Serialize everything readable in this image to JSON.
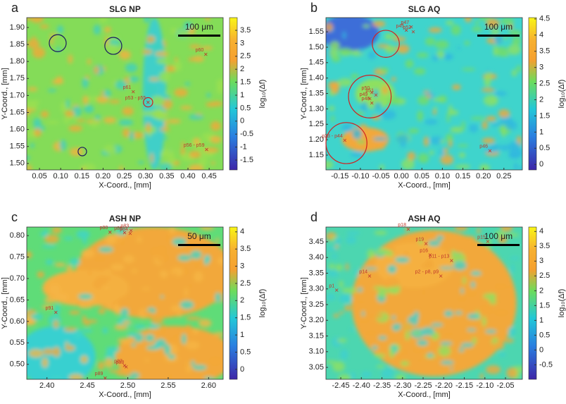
{
  "chart_data": [
    {
      "type": "heatmap",
      "panel": "a",
      "title": "SLG NP",
      "xlabel": "X-Coord., [mm]",
      "ylabel": "Y-Coord., [mm]",
      "colorbar_label": "log₁₀(Δf)",
      "scalebar": "100 μm",
      "xlim": [
        0.02,
        0.483
      ],
      "ylim": [
        1.481,
        1.929
      ],
      "clim": [
        -1.88,
        3.99
      ],
      "xticks": [
        0.05,
        {
          "value": 0.1,
          "label": "0.10"
        },
        0.15,
        {
          "value": 0.2,
          "label": "0.20"
        },
        0.25,
        {
          "value": 0.3,
          "label": "0.30"
        },
        0.35,
        {
          "value": 0.4,
          "label": "0.40"
        },
        0.45
      ],
      "yticks": [
        {
          "value": 1.5,
          "label": "1.50"
        },
        1.55,
        {
          "value": 1.6,
          "label": "1.60"
        },
        1.65,
        {
          "value": 1.7,
          "label": "1.70"
        },
        1.75,
        {
          "value": 1.8,
          "label": "1.80"
        },
        1.85,
        {
          "value": 1.9,
          "label": "1.90"
        }
      ],
      "cticks": [
        -1.5,
        -1,
        -0.5,
        0,
        0.5,
        1,
        1.5,
        2,
        2.5,
        3,
        3.5
      ],
      "annotations": [
        {
          "label": "p60",
          "x": 0.442,
          "y": 1.821
        },
        {
          "label": "p61",
          "x": 0.271,
          "y": 1.711
        },
        {
          "label": "p53 - p55",
          "x": 0.306,
          "y": 1.68
        },
        {
          "label": "p56 - p59",
          "x": 0.444,
          "y": 1.541
        }
      ],
      "circles": [
        {
          "x": 0.306,
          "y": 1.68,
          "r": 0.011,
          "color": "#d02020"
        },
        {
          "x": 0.093,
          "y": 1.854,
          "r": 0.02,
          "color": "#1a1a60"
        },
        {
          "x": 0.224,
          "y": 1.846,
          "r": 0.02,
          "color": "#1a1a60"
        },
        {
          "x": 0.151,
          "y": 1.535,
          "r": 0.01,
          "color": "#1a1a60"
        }
      ]
    },
    {
      "type": "heatmap",
      "panel": "b",
      "title": "SLG AQ",
      "xlabel": "X-Coord., [mm]",
      "ylabel": "Y-Coord., [mm]",
      "colorbar_label": "log₁₀(Δf)",
      "scalebar": "100 μm",
      "xlim": [
        -0.184,
        0.295
      ],
      "ylim": [
        1.102,
        1.596
      ],
      "clim": [
        -0.17,
        4.54
      ],
      "xticks": [
        -0.15,
        {
          "value": -0.1,
          "label": "-0.10"
        },
        -0.05,
        {
          "value": 0,
          "label": "0.00"
        },
        0.05,
        {
          "value": 0.1,
          "label": "0.10"
        },
        0.15,
        {
          "value": 0.2,
          "label": "0.20"
        },
        0.25
      ],
      "yticks": [
        1.15,
        {
          "value": 1.2,
          "label": "1.20"
        },
        1.25,
        {
          "value": 1.3,
          "label": "1.30"
        },
        1.35,
        {
          "value": 1.4,
          "label": "1.40"
        },
        1.45,
        {
          "value": 1.5,
          "label": "1.50"
        },
        1.55
      ],
      "cticks": [
        0,
        0.5,
        1,
        1.5,
        2,
        2.5,
        3,
        3.5,
        4,
        4.5
      ],
      "annotations": [
        {
          "label": "p47",
          "x": 0.024,
          "y": 1.566
        },
        {
          "label": "p45",
          "x": 0.012,
          "y": 1.555
        },
        {
          "label": "p52",
          "x": 0.029,
          "y": 1.55
        },
        {
          "label": "p50",
          "x": -0.072,
          "y": 1.353
        },
        {
          "label": "p51",
          "x": -0.062,
          "y": 1.345
        },
        {
          "label": "p49",
          "x": -0.077,
          "y": 1.333
        },
        {
          "label": "p48",
          "x": -0.072,
          "y": 1.319
        },
        {
          "label": "p23 - p44",
          "x": -0.138,
          "y": 1.198
        },
        {
          "label": "p46",
          "x": 0.216,
          "y": 1.164
        }
      ],
      "circles": [
        {
          "x": -0.038,
          "y": 1.511,
          "r": 0.033,
          "color": "#d02020"
        },
        {
          "x": -0.077,
          "y": 1.34,
          "r": 0.052,
          "color": "#d02020"
        },
        {
          "x": -0.134,
          "y": 1.189,
          "r": 0.05,
          "color": "#d02020"
        }
      ]
    },
    {
      "type": "heatmap",
      "panel": "c",
      "title": "ASH NP",
      "xlabel": "X-Coord., [mm]",
      "ylabel": "Y-Coord., [mm]",
      "colorbar_label": "log₁₀(Δf)",
      "scalebar": "50 μm",
      "xlim": [
        2.375,
        2.618
      ],
      "ylim": [
        0.465,
        0.82
      ],
      "clim": [
        -0.29,
        4.14
      ],
      "xticks": [
        {
          "value": 2.4,
          "label": "2.40"
        },
        2.45,
        {
          "value": 2.5,
          "label": "2.50"
        },
        2.55,
        {
          "value": 2.6,
          "label": "2.60"
        }
      ],
      "yticks": [
        {
          "value": 0.5,
          "label": "0.50"
        },
        0.55,
        {
          "value": 0.6,
          "label": "0.60"
        },
        0.65,
        {
          "value": 0.7,
          "label": "0.70"
        },
        0.75,
        {
          "value": 0.8,
          "label": "0.80"
        }
      ],
      "cticks": [
        0,
        0.5,
        1,
        1.5,
        2,
        2.5,
        3,
        3.5,
        4
      ],
      "annotations": [
        {
          "label": "p80",
          "x": 2.478,
          "y": 0.808
        },
        {
          "label": "p86",
          "x": 2.496,
          "y": 0.807
        },
        {
          "label": "p83",
          "x": 2.504,
          "y": 0.812
        },
        {
          "label": "p84",
          "x": 2.503,
          "y": 0.805
        },
        {
          "label": "p91",
          "x": 2.411,
          "y": 0.621
        },
        {
          "label": "p87",
          "x": 2.496,
          "y": 0.497
        },
        {
          "label": "p88",
          "x": 2.498,
          "y": 0.494
        },
        {
          "label": "p89",
          "x": 2.472,
          "y": 0.468
        }
      ],
      "circles": []
    },
    {
      "type": "heatmap",
      "panel": "d",
      "title": "ASH AQ",
      "xlabel": "X-Coord., [mm]",
      "ylabel": "Y-Coord., [mm]",
      "colorbar_label": "log₁₀(Δf)",
      "scalebar": "100 μm",
      "xlim": [
        -2.486,
        -2.009
      ],
      "ylim": [
        3.012,
        3.497
      ],
      "clim": [
        -0.99,
        4.15
      ],
      "xticks": [
        -2.45,
        {
          "value": -2.4,
          "label": "-2.40"
        },
        -2.35,
        {
          "value": -2.3,
          "label": "-2.30"
        },
        -2.25,
        {
          "value": -2.2,
          "label": "-2.20"
        },
        -2.15,
        {
          "value": -2.1,
          "label": "-2.10"
        },
        -2.05
      ],
      "yticks": [
        3.05,
        {
          "value": 3.1,
          "label": "3.10"
        },
        3.15,
        {
          "value": 3.2,
          "label": "3.20"
        },
        3.25,
        {
          "value": 3.3,
          "label": "3.30"
        },
        3.35,
        {
          "value": 3.4,
          "label": "3.40"
        },
        3.45
      ],
      "cticks": [
        -0.5,
        0,
        0.5,
        1,
        1.5,
        2,
        2.5,
        3,
        3.5,
        4
      ],
      "annotations": [
        {
          "label": "p18",
          "x": -2.286,
          "y": 3.49
        },
        {
          "label": "p15",
          "x": -2.093,
          "y": 3.451
        },
        {
          "label": "p19",
          "x": -2.243,
          "y": 3.444
        },
        {
          "label": "p16",
          "x": -2.233,
          "y": 3.408
        },
        {
          "label": "p11 - p13",
          "x": -2.181,
          "y": 3.39
        },
        {
          "label": "p14",
          "x": -2.38,
          "y": 3.341
        },
        {
          "label": "p2 - p8, p9",
          "x": -2.207,
          "y": 3.341
        },
        {
          "label": "p1",
          "x": -2.46,
          "y": 3.296
        }
      ],
      "circles": []
    }
  ]
}
